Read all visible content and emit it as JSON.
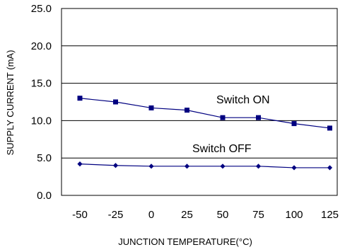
{
  "chart_data": {
    "type": "line",
    "title": "",
    "xlabel": "JUNCTION TEMPERATURE(°C)",
    "ylabel": "SUPPLY CURRENT (mA)",
    "categories": [
      "-50",
      "-25",
      "0",
      "25",
      "50",
      "75",
      "100",
      "125"
    ],
    "ylim": [
      0,
      25
    ],
    "y_ticks": [
      "0.0",
      "5.0",
      "10.0",
      "15.0",
      "20.0",
      "25.0"
    ],
    "y_tick_values": [
      0,
      5,
      10,
      15,
      20,
      25
    ],
    "grid": "horizontal",
    "series": [
      {
        "name": "Switch ON",
        "marker": "square",
        "color": "#000080",
        "values": [
          13.0,
          12.5,
          11.7,
          11.4,
          10.4,
          10.4,
          9.6,
          9.0
        ]
      },
      {
        "name": "Switch OFF",
        "marker": "diamond",
        "color": "#000080",
        "values": [
          4.2,
          4.0,
          3.9,
          3.9,
          3.9,
          3.9,
          3.7,
          3.7
        ]
      }
    ],
    "annotations": [
      "Switch ON",
      "Switch OFF"
    ]
  }
}
